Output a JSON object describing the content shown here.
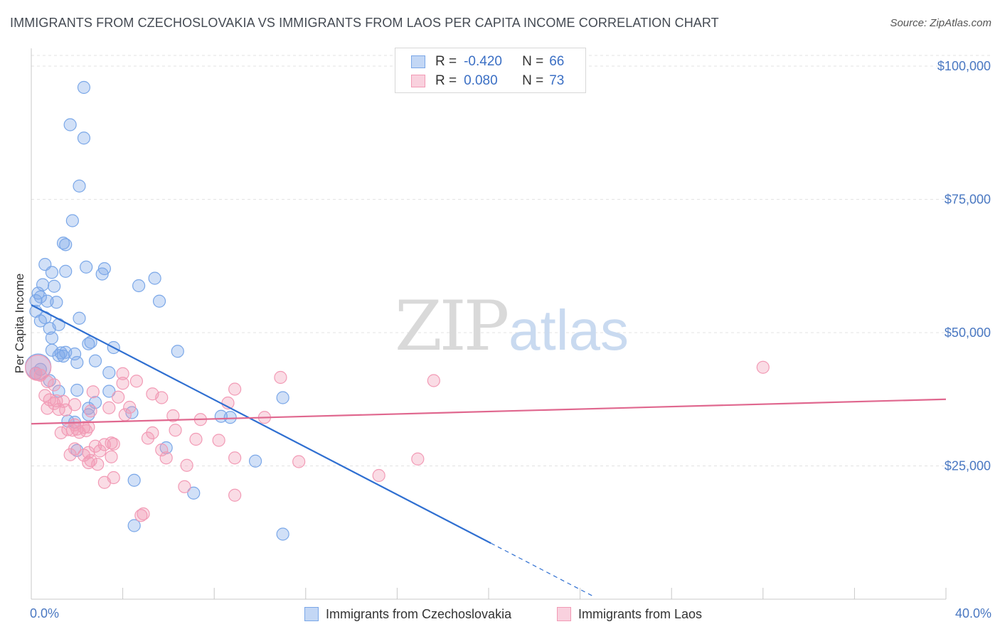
{
  "header": {
    "title": "IMMIGRANTS FROM CZECHOSLOVAKIA VS IMMIGRANTS FROM LAOS PER CAPITA INCOME CORRELATION CHART",
    "source": "Source: ZipAtlas.com"
  },
  "watermark": {
    "zip": "ZIP",
    "atlas": "atlas"
  },
  "legend_top": {
    "rows": [
      {
        "r_label": "R =",
        "r_value": "-0.420",
        "n_label": "N =",
        "n_value": "66",
        "color": "#7aa7e8"
      },
      {
        "r_label": "R =",
        "r_value": "0.080",
        "n_label": "N =",
        "n_value": "73",
        "color": "#f29ab5"
      }
    ]
  },
  "legend_bottom": [
    {
      "label": "Immigrants from Czechoslovakia",
      "color": "#7aa7e8"
    },
    {
      "label": "Immigrants from Laos",
      "color": "#f29ab5"
    }
  ],
  "chart_data": {
    "type": "scatter",
    "title": "IMMIGRANTS FROM CZECHOSLOVAKIA VS IMMIGRANTS FROM LAOS PER CAPITA INCOME CORRELATION CHART",
    "xlabel": "",
    "ylabel": "Per Capita Income",
    "xlim": [
      0,
      40
    ],
    "ylim": [
      0,
      102000
    ],
    "x_tick_labels": [
      "0.0%",
      "40.0%"
    ],
    "y_ticks": [
      25000,
      50000,
      75000,
      100000
    ],
    "y_tick_labels": [
      "$25,000",
      "$50,000",
      "$75,000",
      "$100,000"
    ],
    "grid": true,
    "legend_position": "top-center",
    "series": [
      {
        "name": "Immigrants from Czechoslovakia",
        "color": "#7aa7e8",
        "line_color": "#2f6fd1",
        "trend": {
          "x0": 0.0,
          "y0": 55200,
          "x1": 20.1,
          "y1": 10500,
          "dash_to_x": 24.6
        },
        "points": [
          [
            2.3,
            96000
          ],
          [
            1.7,
            89000
          ],
          [
            2.3,
            86500
          ],
          [
            2.1,
            77500
          ],
          [
            1.8,
            71000
          ],
          [
            1.4,
            66800
          ],
          [
            1.5,
            66500
          ],
          [
            0.6,
            62800
          ],
          [
            2.4,
            62300
          ],
          [
            3.2,
            62000
          ],
          [
            1.5,
            61500
          ],
          [
            0.9,
            61300
          ],
          [
            3.1,
            61000
          ],
          [
            5.4,
            60200
          ],
          [
            0.5,
            59000
          ],
          [
            4.7,
            58800
          ],
          [
            1.0,
            58700
          ],
          [
            0.3,
            57400
          ],
          [
            0.4,
            56700
          ],
          [
            0.2,
            56000
          ],
          [
            0.7,
            55900
          ],
          [
            1.1,
            55700
          ],
          [
            5.6,
            55900
          ],
          [
            0.2,
            54000
          ],
          [
            0.6,
            52800
          ],
          [
            2.1,
            52700
          ],
          [
            0.4,
            52200
          ],
          [
            1.2,
            51500
          ],
          [
            0.8,
            50800
          ],
          [
            0.9,
            49000
          ],
          [
            2.6,
            48200
          ],
          [
            2.5,
            47900
          ],
          [
            3.6,
            47200
          ],
          [
            6.4,
            46500
          ],
          [
            0.9,
            46700
          ],
          [
            1.3,
            46200
          ],
          [
            1.5,
            46300
          ],
          [
            1.9,
            46000
          ],
          [
            1.2,
            45700
          ],
          [
            1.4,
            45600
          ],
          [
            2.8,
            44700
          ],
          [
            2.0,
            44400
          ],
          [
            0.3,
            43600
          ],
          [
            0.4,
            43100
          ],
          [
            3.4,
            42500
          ],
          [
            0.2,
            42400
          ],
          [
            0.8,
            41000
          ],
          [
            2.0,
            39200
          ],
          [
            3.4,
            39000
          ],
          [
            1.2,
            39000
          ],
          [
            11.0,
            37800
          ],
          [
            2.5,
            35800
          ],
          [
            2.8,
            36900
          ],
          [
            2.5,
            34600
          ],
          [
            4.4,
            35000
          ],
          [
            8.3,
            34300
          ],
          [
            8.7,
            34100
          ],
          [
            1.6,
            33400
          ],
          [
            1.9,
            33200
          ],
          [
            5.9,
            28400
          ],
          [
            2.0,
            27900
          ],
          [
            9.8,
            25900
          ],
          [
            4.5,
            22300
          ],
          [
            7.1,
            19900
          ],
          [
            4.5,
            13800
          ],
          [
            11.0,
            12200
          ]
        ]
      },
      {
        "name": "Immigrants from Laos",
        "color": "#f29ab5",
        "line_color": "#e0688f",
        "trend": {
          "x0": 0.0,
          "y0": 32900,
          "x1": 40.0,
          "y1": 37500
        },
        "points": [
          [
            0.3,
            43400
          ],
          [
            32.0,
            43500
          ],
          [
            0.2,
            42300
          ],
          [
            0.4,
            42000
          ],
          [
            4.0,
            42300
          ],
          [
            10.9,
            41600
          ],
          [
            17.6,
            41000
          ],
          [
            4.6,
            40900
          ],
          [
            4.0,
            40500
          ],
          [
            0.7,
            40800
          ],
          [
            1.0,
            40200
          ],
          [
            8.9,
            39400
          ],
          [
            2.7,
            38900
          ],
          [
            5.3,
            38500
          ],
          [
            0.6,
            38200
          ],
          [
            3.8,
            37900
          ],
          [
            5.7,
            37800
          ],
          [
            0.8,
            37400
          ],
          [
            1.1,
            37200
          ],
          [
            1.4,
            37100
          ],
          [
            1.0,
            36700
          ],
          [
            1.9,
            36500
          ],
          [
            8.6,
            36800
          ],
          [
            0.7,
            35800
          ],
          [
            1.2,
            35600
          ],
          [
            3.4,
            35900
          ],
          [
            4.3,
            36000
          ],
          [
            1.5,
            35500
          ],
          [
            2.6,
            35300
          ],
          [
            4.1,
            34600
          ],
          [
            6.2,
            34400
          ],
          [
            10.2,
            34100
          ],
          [
            7.4,
            33700
          ],
          [
            1.9,
            32700
          ],
          [
            2.3,
            32200
          ],
          [
            2.5,
            32300
          ],
          [
            1.6,
            31800
          ],
          [
            1.8,
            31700
          ],
          [
            2.0,
            31900
          ],
          [
            2.4,
            31600
          ],
          [
            6.3,
            31700
          ],
          [
            1.3,
            31200
          ],
          [
            2.1,
            31300
          ],
          [
            5.3,
            31200
          ],
          [
            5.1,
            30200
          ],
          [
            7.2,
            30000
          ],
          [
            8.2,
            29800
          ],
          [
            3.5,
            29300
          ],
          [
            3.2,
            29000
          ],
          [
            3.6,
            29100
          ],
          [
            2.8,
            28700
          ],
          [
            1.9,
            28200
          ],
          [
            3.0,
            27800
          ],
          [
            5.7,
            28000
          ],
          [
            2.5,
            27500
          ],
          [
            1.7,
            27100
          ],
          [
            2.3,
            27000
          ],
          [
            3.5,
            26700
          ],
          [
            5.9,
            26500
          ],
          [
            8.9,
            26500
          ],
          [
            2.6,
            26000
          ],
          [
            2.5,
            25600
          ],
          [
            2.9,
            25300
          ],
          [
            16.9,
            26300
          ],
          [
            11.7,
            25800
          ],
          [
            6.8,
            25100
          ],
          [
            3.6,
            22800
          ],
          [
            3.2,
            21900
          ],
          [
            15.2,
            23200
          ],
          [
            6.7,
            21100
          ],
          [
            8.9,
            19500
          ],
          [
            4.9,
            16000
          ],
          [
            4.8,
            15700
          ]
        ]
      }
    ]
  }
}
